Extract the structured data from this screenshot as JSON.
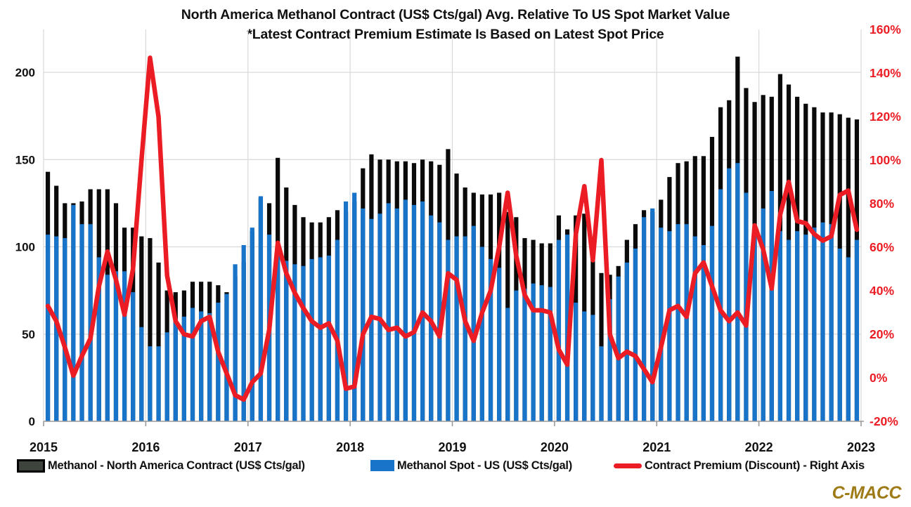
{
  "title": {
    "line1": "North America Methanol Contract (US$ Cts/gal) Avg. Relative To US Spot Market Value",
    "line2": "*Latest Contract Premium Estimate Is Based on Latest Spot Price"
  },
  "branding": "C-MACC",
  "colors": {
    "contract_bar": "#0a0a0a",
    "spot_bar": "#1874c9",
    "premium_line": "#ec1c24",
    "grid": "#d9d9d9",
    "axis_line": "#9a9a9a",
    "left_axis_text": "#111111",
    "right_axis_text": "#ec1c24",
    "brand_text": "#9e7b16",
    "legend_contract_fill": "#3e433e"
  },
  "legend": {
    "contract_label": "Methanol - North America Contract (US$ Cts/gal)",
    "spot_label": "Methanol Spot - US (US$ Cts/gal)",
    "premium_label": "Contract Premium (Discount) - Right Axis"
  },
  "chart_data": {
    "type": "bar",
    "subtype": "overlapped bars + line on secondary axis",
    "x": {
      "start": "2015-01",
      "end": "2022-12",
      "n_months": 96,
      "tick_labels": [
        "2015",
        "2016",
        "2017",
        "2018",
        "2019",
        "2020",
        "2021",
        "2022",
        "2023"
      ]
    },
    "left_axis": {
      "ticks": [
        0,
        50,
        100,
        150,
        200
      ],
      "range": [
        0,
        224
      ],
      "label": "US$ Cts/gal"
    },
    "right_axis": {
      "ticks": [
        "160%",
        "140%",
        "120%",
        "100%",
        "80%",
        "60%",
        "40%",
        "20%",
        "0%",
        "-20%"
      ],
      "range": [
        -20,
        160
      ]
    },
    "grid": "horizontal + vertical year lines",
    "legend_position": "bottom",
    "series": [
      {
        "name": "Methanol - North America Contract (US$ Cts/gal)",
        "type": "bar",
        "axis": "left",
        "color_key": "contract_bar",
        "values": [
          143,
          135,
          125,
          125,
          126,
          133,
          133,
          133,
          125,
          111,
          111,
          106,
          105,
          91,
          75,
          74,
          75,
          80,
          80,
          80,
          78,
          74,
          83,
          91,
          109,
          128,
          125,
          151,
          134,
          124,
          117,
          114,
          114,
          117,
          121,
          120,
          126,
          145,
          153,
          150,
          150,
          149,
          149,
          148,
          150,
          149,
          147,
          156,
          142,
          134,
          131,
          130,
          130,
          131,
          120,
          117,
          105,
          104,
          102,
          102,
          118,
          110,
          118,
          119,
          93,
          85,
          84,
          89,
          104,
          113,
          121,
          120,
          127,
          140,
          148,
          149,
          152,
          152,
          163,
          180,
          184,
          209,
          191,
          183,
          187,
          186,
          199,
          193,
          186,
          182,
          180,
          177,
          177,
          176,
          174,
          173
        ]
      },
      {
        "name": "Methanol Spot - US (US$ Cts/gal)",
        "type": "bar",
        "axis": "left",
        "color_key": "spot_bar",
        "values": [
          107,
          106,
          105,
          124,
          113,
          113,
          94,
          84,
          86,
          86,
          74,
          54,
          43,
          43,
          51,
          57,
          60,
          65,
          63,
          62,
          68,
          73,
          90,
          101,
          111,
          129,
          107,
          97,
          92,
          90,
          89,
          93,
          94,
          95,
          104,
          126,
          131,
          122,
          116,
          119,
          125,
          122,
          127,
          124,
          126,
          118,
          114,
          104,
          106,
          106,
          112,
          100,
          93,
          88,
          65,
          75,
          76,
          79,
          78,
          77,
          104,
          107,
          68,
          63,
          61,
          43,
          70,
          83,
          91,
          99,
          117,
          122,
          111,
          109,
          113,
          113,
          106,
          101,
          112,
          133,
          145,
          148,
          131,
          107,
          122,
          132,
          109,
          104,
          109,
          107,
          111,
          114,
          113,
          99,
          94,
          104
        ]
      },
      {
        "name": "Contract Premium (Discount) - Right Axis",
        "type": "line",
        "axis": "right",
        "unit": "%",
        "color_key": "premium_line",
        "values": [
          33,
          26,
          14,
          1,
          10,
          18,
          42,
          58,
          45,
          29,
          50,
          100,
          147,
          120,
          47,
          26,
          20,
          19,
          26,
          28,
          12,
          2,
          -8,
          -10,
          -2,
          2,
          22,
          62,
          48,
          39,
          32,
          26,
          23,
          25,
          17,
          -5,
          -4,
          20,
          28,
          27,
          22,
          23,
          19,
          21,
          30,
          26,
          19,
          48,
          45,
          26,
          17,
          30,
          40,
          60,
          85,
          56,
          38,
          31,
          31,
          30,
          13,
          6,
          66,
          88,
          54,
          100,
          20,
          9,
          12,
          10,
          4,
          -2,
          14,
          31,
          33,
          28,
          48,
          53,
          42,
          31,
          26,
          30,
          24,
          70,
          59,
          41,
          75,
          90,
          72,
          71,
          66,
          63,
          65,
          84,
          86,
          68
        ]
      }
    ]
  }
}
